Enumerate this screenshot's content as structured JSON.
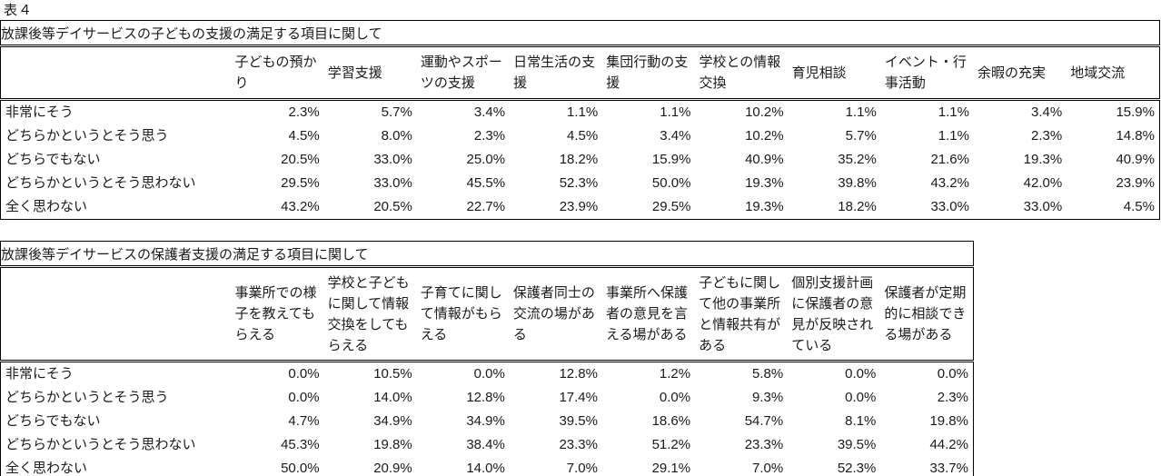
{
  "page": {
    "caption": "表４"
  },
  "colors": {
    "text": "#1a1a1a",
    "border": "#000000",
    "background": "#ffffff"
  },
  "tables": [
    {
      "title": "放課後等デイサービスの子どもの支援の満足する項目に関して",
      "columns": [
        "子どもの預かり",
        "学習支援",
        "運動やスポーツの支援",
        "日常生活の支援",
        "集団行動の支援",
        "学校との情報交換",
        "育児相談",
        "イベント・行事活動",
        "余暇の充実",
        "地域交流"
      ],
      "rows": [
        {
          "label": "非常にそう",
          "values": [
            "2.3%",
            "5.7%",
            "3.4%",
            "1.1%",
            "1.1%",
            "10.2%",
            "1.1%",
            "1.1%",
            "3.4%",
            "15.9%"
          ]
        },
        {
          "label": "どちらかというとそう思う",
          "values": [
            "4.5%",
            "8.0%",
            "2.3%",
            "4.5%",
            "3.4%",
            "10.2%",
            "5.7%",
            "1.1%",
            "2.3%",
            "14.8%"
          ]
        },
        {
          "label": "どちらでもない",
          "values": [
            "20.5%",
            "33.0%",
            "25.0%",
            "18.2%",
            "15.9%",
            "40.9%",
            "35.2%",
            "21.6%",
            "19.3%",
            "40.9%"
          ]
        },
        {
          "label": "どちらかというとそう思わない",
          "values": [
            "29.5%",
            "33.0%",
            "45.5%",
            "52.3%",
            "50.0%",
            "19.3%",
            "39.8%",
            "43.2%",
            "42.0%",
            "23.9%"
          ]
        },
        {
          "label": "全く思わない",
          "values": [
            "43.2%",
            "20.5%",
            "22.7%",
            "23.9%",
            "29.5%",
            "19.3%",
            "18.2%",
            "33.0%",
            "33.0%",
            "4.5%"
          ]
        }
      ]
    },
    {
      "title": "放課後等デイサービスの保護者支援の満足する項目に関して",
      "columns": [
        "事業所での様子を教えてもらえる",
        "学校と子どもに関して情報交換をしてもらえる",
        "子育てに関して情報がもらえる",
        "保護者同士の交流の場がある",
        "事業所へ保護者の意見を言える場がある",
        "子どもに関して他の事業所と情報共有がある",
        "個別支援計画に保護者の意見が反映されている",
        "保護者が定期的に相談できる場がある"
      ],
      "rows": [
        {
          "label": "非常にそう",
          "values": [
            "0.0%",
            "10.5%",
            "0.0%",
            "12.8%",
            "1.2%",
            "5.8%",
            "0.0%",
            "0.0%"
          ]
        },
        {
          "label": "どちらかというとそう思う",
          "values": [
            "0.0%",
            "14.0%",
            "12.8%",
            "17.4%",
            "0.0%",
            "9.3%",
            "0.0%",
            "2.3%"
          ]
        },
        {
          "label": "どちらでもない",
          "values": [
            "4.7%",
            "34.9%",
            "34.9%",
            "39.5%",
            "18.6%",
            "54.7%",
            "8.1%",
            "19.8%"
          ]
        },
        {
          "label": "どちらかというとそう思わない",
          "values": [
            "45.3%",
            "19.8%",
            "38.4%",
            "23.3%",
            "51.2%",
            "23.3%",
            "39.5%",
            "44.2%"
          ]
        },
        {
          "label": "全く思わない",
          "values": [
            "50.0%",
            "20.9%",
            "14.0%",
            "7.0%",
            "29.1%",
            "7.0%",
            "52.3%",
            "33.7%"
          ]
        }
      ]
    }
  ]
}
